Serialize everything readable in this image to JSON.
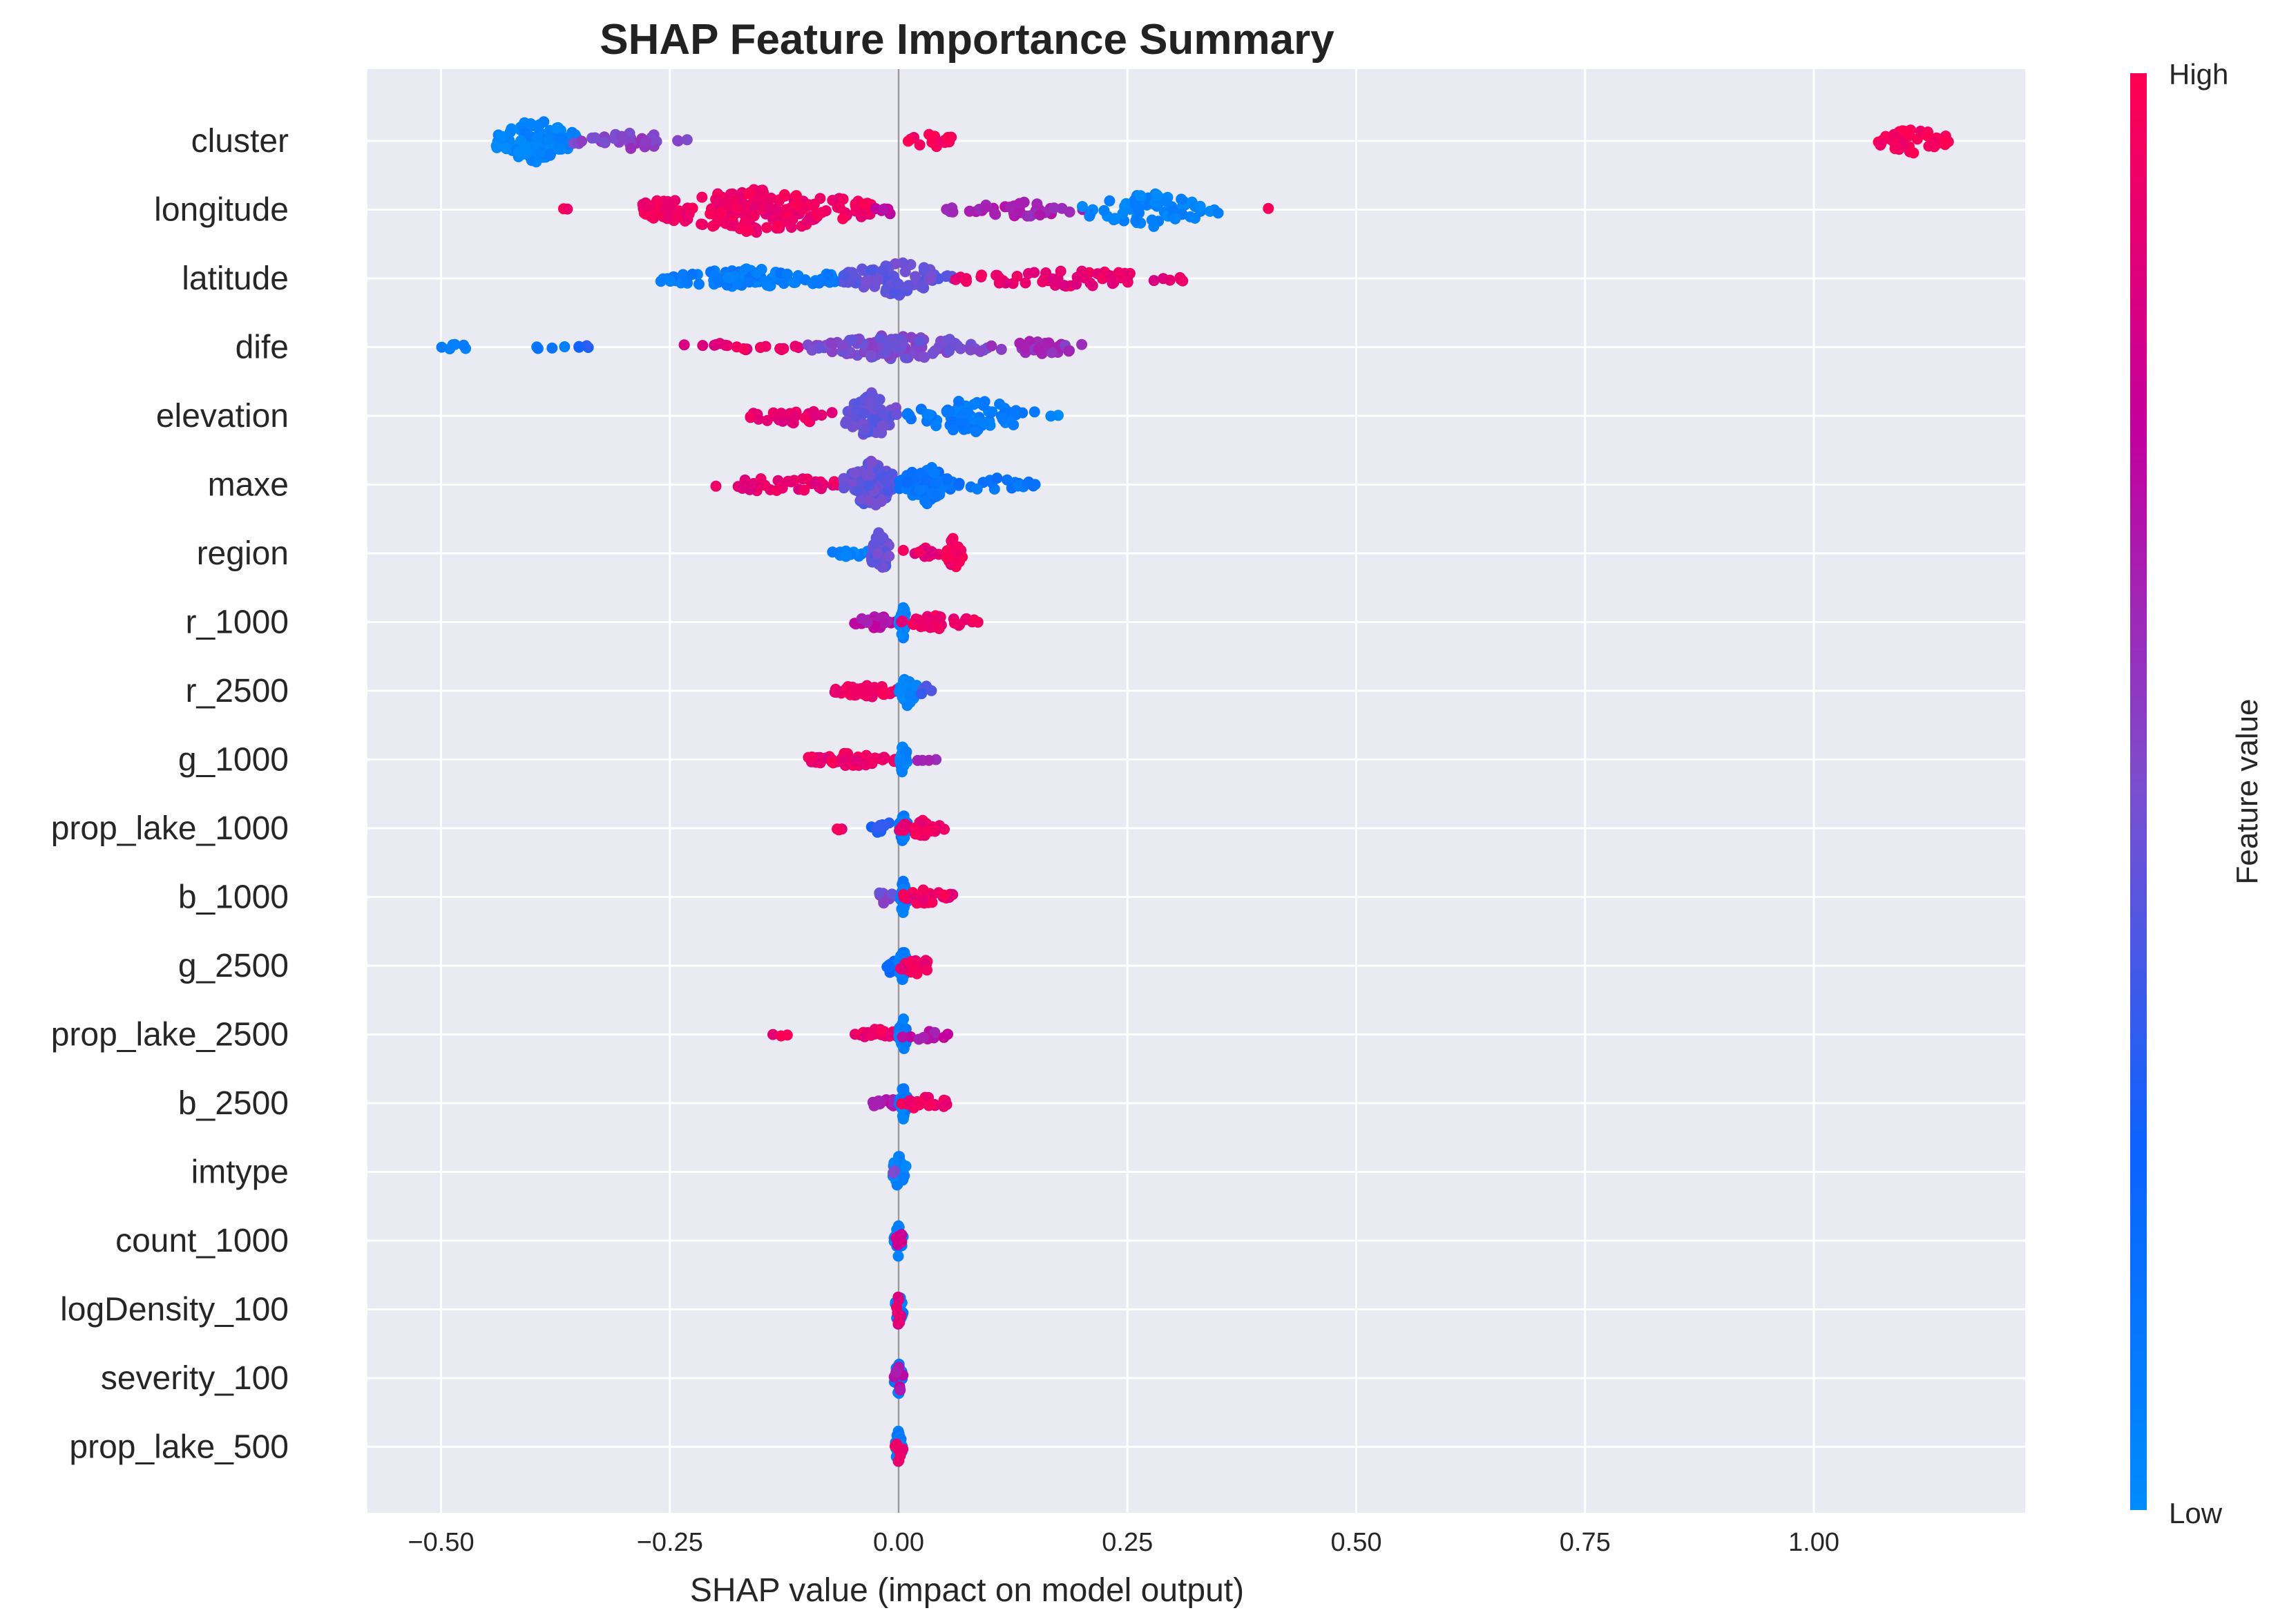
{
  "chart_data": {
    "type": "scatter",
    "subtype": "shap-beeswarm",
    "title": "SHAP Feature Importance Summary",
    "xlabel": "SHAP value (impact on model output)",
    "ylabel": "",
    "xlim": [
      -0.58,
      1.24
    ],
    "x_ticks": [
      -0.5,
      -0.25,
      0.0,
      0.25,
      0.5,
      0.75,
      1.0
    ],
    "x_tick_labels": [
      "−0.50",
      "−0.25",
      "0.00",
      "0.25",
      "0.50",
      "0.75",
      "1.00"
    ],
    "grid": true,
    "colorbar": {
      "label": "Feature value",
      "high_label": "High",
      "low_label": "Low",
      "low_color": "#008bfb",
      "high_color": "#ff0052"
    },
    "features": [
      {
        "name": "cluster",
        "groups": [
          {
            "range": [
              -0.44,
              -0.35
            ],
            "color": 0.05,
            "count": 110,
            "spread": 1.0
          },
          {
            "range": [
              -0.36,
              -0.22
            ],
            "color": 0.55,
            "count": 35,
            "spread": 0.35
          },
          {
            "range": [
              0.01,
              0.07
            ],
            "color": 0.95,
            "count": 14,
            "spread": 0.35
          },
          {
            "range": [
              1.07,
              1.15
            ],
            "color": 0.97,
            "count": 40,
            "spread": 0.6
          }
        ]
      },
      {
        "name": "longitude",
        "groups": [
          {
            "range": [
              -0.39,
              -0.35
            ],
            "color": 0.95,
            "count": 2,
            "spread": 0.1
          },
          {
            "range": [
              -0.28,
              -0.03
            ],
            "color": 0.93,
            "count": 230,
            "spread": 1.0
          },
          {
            "range": [
              -0.03,
              0.01
            ],
            "color": 0.75,
            "count": 6,
            "spread": 0.2
          },
          {
            "range": [
              0.05,
              0.21
            ],
            "color": 0.65,
            "count": 40,
            "spread": 0.35
          },
          {
            "range": [
              0.2,
              0.35
            ],
            "color": 0.05,
            "count": 70,
            "spread": 0.75
          },
          {
            "range": [
              0.4,
              0.41
            ],
            "color": 0.95,
            "count": 1,
            "spread": 0.1
          }
        ]
      },
      {
        "name": "latitude",
        "groups": [
          {
            "range": [
              -0.26,
              -0.06
            ],
            "color": 0.1,
            "count": 100,
            "spread": 0.45
          },
          {
            "range": [
              -0.06,
              0.06
            ],
            "color": 0.45,
            "count": 80,
            "spread": 0.75
          },
          {
            "range": [
              0.06,
              0.32
            ],
            "color": 0.9,
            "count": 60,
            "spread": 0.35
          }
        ]
      },
      {
        "name": "dife",
        "groups": [
          {
            "range": [
              -0.5,
              -0.47
            ],
            "color": 0.05,
            "count": 6,
            "spread": 0.15
          },
          {
            "range": [
              -0.41,
              -0.36
            ],
            "color": 0.1,
            "count": 4,
            "spread": 0.1
          },
          {
            "range": [
              -0.35,
              -0.33
            ],
            "color": 0.3,
            "count": 4,
            "spread": 0.1
          },
          {
            "range": [
              -0.26,
              -0.1
            ],
            "color": 0.9,
            "count": 18,
            "spread": 0.2
          },
          {
            "range": [
              -0.1,
              0.1
            ],
            "color": 0.5,
            "count": 110,
            "spread": 0.55
          },
          {
            "range": [
              0.1,
              0.21
            ],
            "color": 0.6,
            "count": 30,
            "spread": 0.3
          }
        ]
      },
      {
        "name": "elevation",
        "groups": [
          {
            "range": [
              -0.17,
              -0.06
            ],
            "color": 0.9,
            "count": 25,
            "spread": 0.35
          },
          {
            "range": [
              -0.06,
              0.0
            ],
            "color": 0.45,
            "count": 90,
            "spread": 1.0
          },
          {
            "range": [
              0.0,
              0.15
            ],
            "color": 0.1,
            "count": 75,
            "spread": 0.75
          },
          {
            "range": [
              0.16,
              0.18
            ],
            "color": 0.05,
            "count": 2,
            "spread": 0.1
          }
        ]
      },
      {
        "name": "maxe",
        "groups": [
          {
            "range": [
              -0.2,
              -0.06
            ],
            "color": 0.9,
            "count": 40,
            "spread": 0.35
          },
          {
            "range": [
              -0.06,
              0.0
            ],
            "color": 0.45,
            "count": 100,
            "spread": 1.0
          },
          {
            "range": [
              0.0,
              0.06
            ],
            "color": 0.15,
            "count": 70,
            "spread": 0.85
          },
          {
            "range": [
              0.06,
              0.15
            ],
            "color": 0.15,
            "count": 20,
            "spread": 0.3
          }
        ]
      },
      {
        "name": "region",
        "groups": [
          {
            "range": [
              -0.08,
              -0.02
            ],
            "color": 0.05,
            "count": 12,
            "spread": 0.2
          },
          {
            "range": [
              -0.03,
              -0.01
            ],
            "color": 0.45,
            "count": 40,
            "spread": 1.0
          },
          {
            "range": [
              0.0,
              0.05
            ],
            "color": 0.9,
            "count": 12,
            "spread": 0.3
          },
          {
            "range": [
              0.05,
              0.07
            ],
            "color": 0.97,
            "count": 25,
            "spread": 0.7
          }
        ]
      },
      {
        "name": "r_1000",
        "groups": [
          {
            "range": [
              -0.05,
              0.0
            ],
            "color": 0.7,
            "count": 30,
            "spread": 0.3
          },
          {
            "range": [
              0.0,
              0.01
            ],
            "color": 0.05,
            "count": 30,
            "spread": 0.7
          },
          {
            "range": [
              0.0,
              0.09
            ],
            "color": 0.93,
            "count": 40,
            "spread": 0.3
          }
        ]
      },
      {
        "name": "r_2500",
        "groups": [
          {
            "range": [
              -0.07,
              0.0
            ],
            "color": 0.93,
            "count": 45,
            "spread": 0.3
          },
          {
            "range": [
              0.0,
              0.02
            ],
            "color": 0.05,
            "count": 30,
            "spread": 0.7
          },
          {
            "range": [
              0.02,
              0.04
            ],
            "color": 0.4,
            "count": 5,
            "spread": 0.2
          }
        ]
      },
      {
        "name": "g_1000",
        "groups": [
          {
            "range": [
              -0.1,
              0.0
            ],
            "color": 0.93,
            "count": 45,
            "spread": 0.3
          },
          {
            "range": [
              0.0,
              0.01
            ],
            "color": 0.05,
            "count": 30,
            "spread": 0.7
          },
          {
            "range": [
              0.02,
              0.05
            ],
            "color": 0.6,
            "count": 4,
            "spread": 0.15
          }
        ]
      },
      {
        "name": "prop_lake_1000",
        "groups": [
          {
            "range": [
              -0.07,
              -0.06
            ],
            "color": 0.93,
            "count": 3,
            "spread": 0.1
          },
          {
            "range": [
              -0.03,
              0.0
            ],
            "color": 0.3,
            "count": 10,
            "spread": 0.3
          },
          {
            "range": [
              0.0,
              0.01
            ],
            "color": 0.1,
            "count": 30,
            "spread": 0.7
          },
          {
            "range": [
              0.0,
              0.05
            ],
            "color": 0.93,
            "count": 30,
            "spread": 0.35
          }
        ]
      },
      {
        "name": "b_1000",
        "groups": [
          {
            "range": [
              -0.03,
              0.0
            ],
            "color": 0.5,
            "count": 10,
            "spread": 0.3
          },
          {
            "range": [
              0.0,
              0.01
            ],
            "color": 0.1,
            "count": 30,
            "spread": 0.7
          },
          {
            "range": [
              0.0,
              0.06
            ],
            "color": 0.93,
            "count": 30,
            "spread": 0.35
          }
        ]
      },
      {
        "name": "g_2500",
        "groups": [
          {
            "range": [
              -0.02,
              0.0
            ],
            "color": 0.2,
            "count": 10,
            "spread": 0.3
          },
          {
            "range": [
              0.0,
              0.01
            ],
            "color": 0.1,
            "count": 30,
            "spread": 0.7
          },
          {
            "range": [
              0.0,
              0.04
            ],
            "color": 0.93,
            "count": 20,
            "spread": 0.35
          }
        ]
      },
      {
        "name": "prop_lake_2500",
        "groups": [
          {
            "range": [
              -0.14,
              -0.12
            ],
            "color": 0.93,
            "count": 3,
            "spread": 0.1
          },
          {
            "range": [
              -0.05,
              0.0
            ],
            "color": 0.93,
            "count": 25,
            "spread": 0.25
          },
          {
            "range": [
              0.0,
              0.01
            ],
            "color": 0.1,
            "count": 30,
            "spread": 0.7
          },
          {
            "range": [
              0.0,
              0.06
            ],
            "color": 0.7,
            "count": 10,
            "spread": 0.3
          }
        ]
      },
      {
        "name": "b_2500",
        "groups": [
          {
            "range": [
              -0.03,
              0.0
            ],
            "color": 0.7,
            "count": 15,
            "spread": 0.3
          },
          {
            "range": [
              0.0,
              0.01
            ],
            "color": 0.1,
            "count": 30,
            "spread": 0.7
          },
          {
            "range": [
              0.0,
              0.06
            ],
            "color": 0.93,
            "count": 18,
            "spread": 0.3
          }
        ]
      },
      {
        "name": "imtype",
        "groups": [
          {
            "range": [
              -0.01,
              0.01
            ],
            "color": 0.05,
            "count": 30,
            "spread": 0.7
          },
          {
            "range": [
              -0.01,
              0.0
            ],
            "color": 0.5,
            "count": 2,
            "spread": 0.1
          }
        ]
      },
      {
        "name": "count_1000",
        "groups": [
          {
            "range": [
              -0.005,
              0.005
            ],
            "color": 0.1,
            "count": 25,
            "spread": 0.7
          },
          {
            "range": [
              -0.005,
              0.005
            ],
            "color": 0.8,
            "count": 8,
            "spread": 0.7
          }
        ]
      },
      {
        "name": "logDensity_100",
        "groups": [
          {
            "range": [
              -0.005,
              0.005
            ],
            "color": 0.1,
            "count": 25,
            "spread": 0.7
          },
          {
            "range": [
              -0.005,
              0.005
            ],
            "color": 0.85,
            "count": 8,
            "spread": 0.7
          }
        ]
      },
      {
        "name": "severity_100",
        "groups": [
          {
            "range": [
              -0.005,
              0.005
            ],
            "color": 0.1,
            "count": 25,
            "spread": 0.7
          },
          {
            "range": [
              -0.005,
              0.005
            ],
            "color": 0.7,
            "count": 8,
            "spread": 0.7
          }
        ]
      },
      {
        "name": "prop_lake_500",
        "groups": [
          {
            "range": [
              -0.005,
              0.005
            ],
            "color": 0.1,
            "count": 25,
            "spread": 0.7
          },
          {
            "range": [
              -0.005,
              0.005
            ],
            "color": 0.93,
            "count": 8,
            "spread": 0.7
          }
        ]
      }
    ]
  }
}
